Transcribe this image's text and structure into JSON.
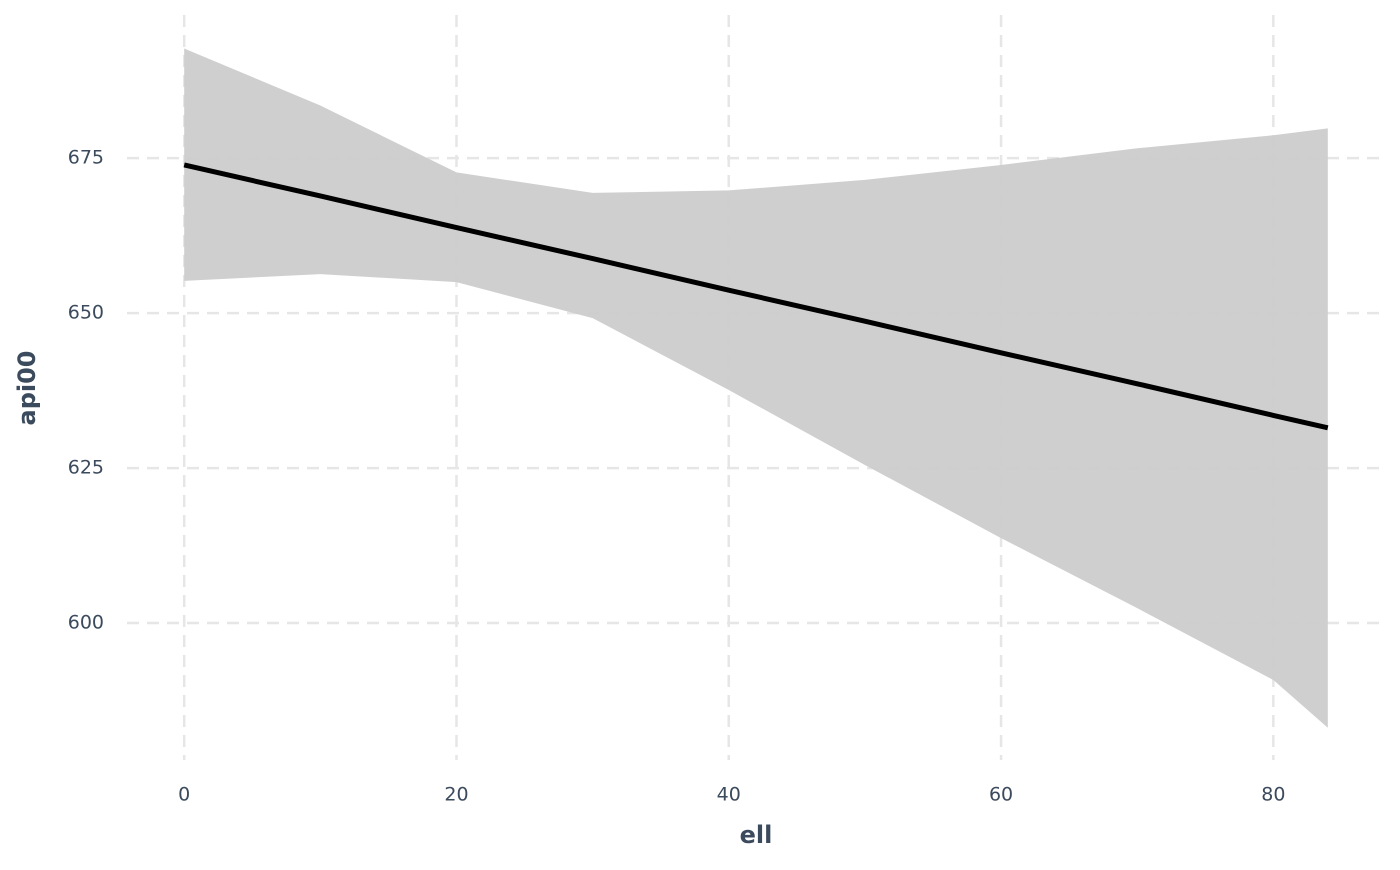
{
  "chart_data": {
    "type": "line",
    "x_label": "ell",
    "y_label": "api00",
    "x": [
      0,
      10,
      20,
      30,
      40,
      50,
      60,
      70,
      80,
      84
    ],
    "series": [
      {
        "color": "#000000",
        "values": [
          673.9,
          668.9,
          663.8,
          658.8,
          653.7,
          648.7,
          643.6,
          638.6,
          633.5,
          631.5
        ]
      }
    ],
    "band": {
      "color": "#cccccc",
      "upper": [
        692.7,
        683.5,
        672.7,
        669.4,
        669.8,
        671.5,
        673.9,
        676.6,
        678.7,
        679.8
      ],
      "lower": [
        655.2,
        656.3,
        655.0,
        649.2,
        637.6,
        625.5,
        613.7,
        602.4,
        590.8,
        583.1
      ]
    },
    "xlim": [
      -4.2,
      88.2
    ],
    "ylim": [
      577.9,
      698.1
    ],
    "xticks": [
      0,
      20,
      40,
      60,
      80
    ],
    "yticks": [
      600,
      625,
      650,
      675
    ],
    "grid": true
  }
}
